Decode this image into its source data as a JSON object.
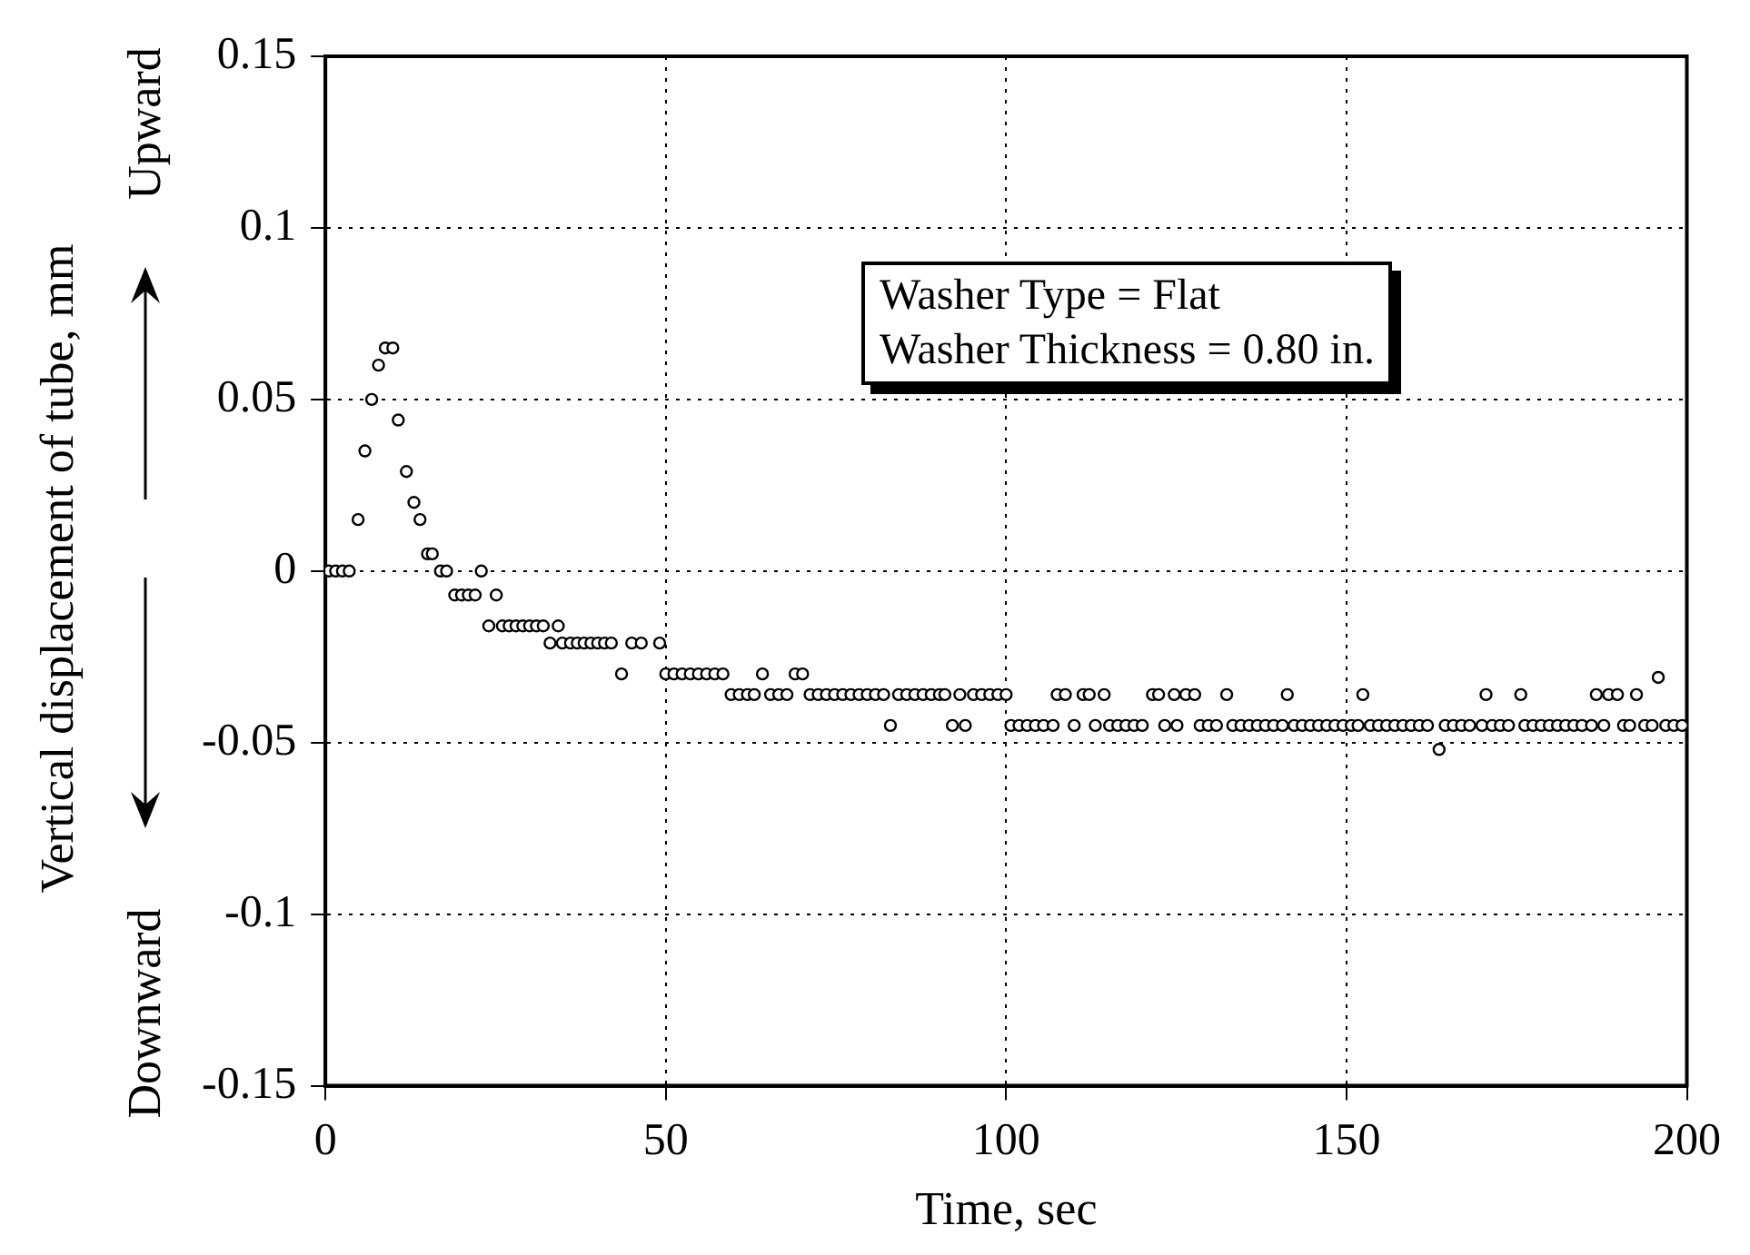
{
  "chart_data": {
    "type": "scatter",
    "xlabel": "Time, sec",
    "ylabel": "Vertical displacement of tube, mm",
    "annotations": [
      "Washer Type = Flat",
      "Washer Thickness = 0.80 in.",
      "Upward",
      "Downward"
    ],
    "xlim": [
      0,
      200
    ],
    "xticks": [
      0,
      50,
      100,
      150,
      200
    ],
    "ylim": [
      -0.15,
      0.15
    ],
    "yticks": [
      -0.15,
      -0.1,
      -0.05,
      0,
      0.05,
      0.1,
      0.15
    ],
    "grid": true,
    "legend": false,
    "marker": "circle",
    "series": [
      {
        "color": "#000000",
        "x": [
          0.5,
          1.5,
          2.5,
          3.5,
          4.8,
          5.8,
          6.8,
          7.8,
          8.8,
          9.9,
          10.7,
          11.9,
          13,
          13.9,
          15,
          15.7,
          16.9,
          17.8,
          19,
          20,
          21,
          22,
          22.9,
          24,
          25.1,
          26,
          27,
          28,
          29,
          30,
          31,
          32,
          33,
          34.2,
          34.8,
          36,
          37,
          38,
          39,
          40,
          41,
          42,
          43.5,
          45,
          46.4,
          49.1,
          50,
          51.2,
          52.4,
          53.6,
          54.8,
          56,
          57.2,
          58.4,
          59.6,
          60.8,
          62,
          63,
          64.2,
          65.4,
          66.6,
          67.8,
          69,
          70.1,
          71.2,
          72.4,
          73.6,
          74.8,
          76,
          77.2,
          78.4,
          79.6,
          80.8,
          82,
          83,
          84.2,
          85.4,
          86.6,
          87.8,
          89,
          90.2,
          91,
          92.1,
          93.2,
          94,
          95.2,
          96.4,
          97.6,
          98.8,
          100,
          100.7,
          101.9,
          103.1,
          104.3,
          105.5,
          106.9,
          107.5,
          108.7,
          110,
          111.3,
          112.2,
          113.1,
          114.4,
          115.2,
          116.4,
          117.6,
          118.8,
          120,
          121.5,
          122.4,
          123.3,
          124.7,
          125.1,
          126.4,
          127.7,
          128.5,
          129.7,
          130.9,
          132.4,
          133.3,
          134.5,
          135.7,
          136.9,
          138.1,
          139.3,
          140.6,
          141.3,
          142.3,
          143.5,
          144.7,
          145.9,
          147.1,
          148.3,
          149.5,
          150.7,
          151.7,
          152.4,
          153.5,
          154.7,
          155.9,
          157.1,
          158.3,
          159.5,
          160.7,
          161.9,
          163.6,
          164.5,
          165.7,
          166.9,
          168.1,
          169.9,
          170.5,
          171.4,
          172.6,
          173.8,
          175.6,
          176.2,
          177.4,
          178.6,
          179.8,
          181,
          182.2,
          183.4,
          184.6,
          186,
          186.7,
          187.8,
          188.5,
          189.8,
          190.7,
          191.6,
          192.6,
          193.8,
          194.9,
          195.8,
          196.9,
          198.1,
          199.3
        ],
        "values": [
          0,
          0,
          0,
          0,
          0.015,
          0.035,
          0.05,
          0.06,
          0.065,
          0.065,
          0.044,
          0.029,
          0.02,
          0.015,
          0.005,
          0.005,
          0,
          0,
          -0.007,
          -0.007,
          -0.007,
          -0.007,
          0,
          -0.016,
          -0.007,
          -0.016,
          -0.016,
          -0.016,
          -0.016,
          -0.016,
          -0.016,
          -0.016,
          -0.021,
          -0.016,
          -0.021,
          -0.021,
          -0.021,
          -0.021,
          -0.021,
          -0.021,
          -0.021,
          -0.021,
          -0.03,
          -0.021,
          -0.021,
          -0.021,
          -0.03,
          -0.03,
          -0.03,
          -0.03,
          -0.03,
          -0.03,
          -0.03,
          -0.03,
          -0.036,
          -0.036,
          -0.036,
          -0.036,
          -0.03,
          -0.036,
          -0.036,
          -0.036,
          -0.03,
          -0.03,
          -0.036,
          -0.036,
          -0.036,
          -0.036,
          -0.036,
          -0.036,
          -0.036,
          -0.036,
          -0.036,
          -0.036,
          -0.045,
          -0.036,
          -0.036,
          -0.036,
          -0.036,
          -0.036,
          -0.036,
          -0.036,
          -0.045,
          -0.036,
          -0.045,
          -0.036,
          -0.036,
          -0.036,
          -0.036,
          -0.036,
          -0.045,
          -0.045,
          -0.045,
          -0.045,
          -0.045,
          -0.045,
          -0.036,
          -0.036,
          -0.045,
          -0.036,
          -0.036,
          -0.045,
          -0.036,
          -0.045,
          -0.045,
          -0.045,
          -0.045,
          -0.045,
          -0.036,
          -0.036,
          -0.045,
          -0.036,
          -0.045,
          -0.036,
          -0.036,
          -0.045,
          -0.045,
          -0.045,
          -0.036,
          -0.045,
          -0.045,
          -0.045,
          -0.045,
          -0.045,
          -0.045,
          -0.045,
          -0.036,
          -0.045,
          -0.045,
          -0.045,
          -0.045,
          -0.045,
          -0.045,
          -0.045,
          -0.045,
          -0.045,
          -0.036,
          -0.045,
          -0.045,
          -0.045,
          -0.045,
          -0.045,
          -0.045,
          -0.045,
          -0.045,
          -0.052,
          -0.045,
          -0.045,
          -0.045,
          -0.045,
          -0.045,
          -0.036,
          -0.045,
          -0.045,
          -0.045,
          -0.036,
          -0.045,
          -0.045,
          -0.045,
          -0.045,
          -0.045,
          -0.045,
          -0.045,
          -0.045,
          -0.045,
          -0.036,
          -0.045,
          -0.036,
          -0.036,
          -0.045,
          -0.045,
          -0.036,
          -0.045,
          -0.045,
          -0.031,
          -0.045,
          -0.045,
          -0.045
        ]
      }
    ]
  }
}
